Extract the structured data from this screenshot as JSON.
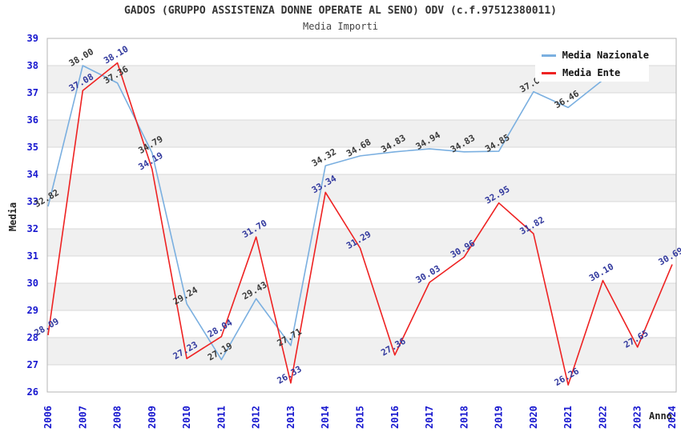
{
  "title": "GADOS (GRUPPO ASSISTENZA DONNE OPERATE AL SENO) ODV (c.f.97512380011)",
  "subtitle": "Media Importi",
  "axes": {
    "y_label": "Media",
    "x_label": "Anno",
    "y_min": 26,
    "y_max": 39,
    "y_ticks": [
      26,
      27,
      28,
      29,
      30,
      31,
      32,
      33,
      34,
      35,
      36,
      37,
      38,
      39
    ]
  },
  "legend": {
    "items": [
      {
        "label": "Media Nazionale",
        "color": "#7aafe0"
      },
      {
        "label": "Media Ente",
        "color": "#ee2222"
      }
    ]
  },
  "colors": {
    "tick_label": "#1717cf",
    "gridline": "#d9d9d9",
    "band_gray": "#f0f0f0",
    "plot_border": "#b5b5b5",
    "nazionale_line": "#7aafe0",
    "nazionale_label": "#3a3a3a",
    "ente_line": "#ee2222",
    "ente_label": "#333a9e"
  },
  "chart_data": {
    "type": "line",
    "title": "GADOS (GRUPPO ASSISTENZA DONNE OPERATE AL SENO) ODV (c.f.97512380011)",
    "subtitle": "Media Importi",
    "xlabel": "Anno",
    "ylabel": "Media",
    "ylim": [
      26,
      39
    ],
    "grid": true,
    "legend_position": "top-right",
    "x": [
      2006,
      2007,
      2008,
      2009,
      2010,
      2011,
      2012,
      2013,
      2014,
      2015,
      2016,
      2017,
      2018,
      2019,
      2020,
      2021,
      2022,
      2023,
      2024
    ],
    "series": [
      {
        "name": "Media Nazionale",
        "color": "#7aafe0",
        "label_color": "#3a3a3a",
        "values": [
          32.82,
          38.0,
          37.36,
          34.79,
          29.24,
          27.19,
          29.43,
          27.71,
          34.32,
          34.68,
          34.83,
          34.94,
          34.83,
          34.85,
          37.04,
          36.46,
          37.47,
          null,
          null
        ],
        "labels": [
          "32.82",
          "38.00",
          "37.36",
          "34.79",
          "29.24",
          "27.19",
          "29.43",
          "27.71",
          "34.32",
          "34.68",
          "34.83",
          "34.94",
          "34.83",
          "34.85",
          "37.04",
          "36.46",
          "",
          null,
          null
        ]
      },
      {
        "name": "Media Ente",
        "color": "#ee2222",
        "label_color": "#333a9e",
        "values": [
          28.09,
          37.08,
          38.1,
          34.19,
          27.23,
          28.04,
          31.7,
          26.33,
          33.34,
          31.29,
          27.36,
          30.03,
          30.96,
          32.95,
          31.82,
          26.26,
          30.1,
          27.65,
          30.69
        ],
        "labels": [
          "28.09",
          "37.08",
          "38.10",
          "34.19",
          "27.23",
          "28.04",
          "31.70",
          "26.33",
          "33.34",
          "31.29",
          "27.36",
          "30.03",
          "30.96",
          "32.95",
          "31.82",
          "26.26",
          "30.10",
          "27.65",
          "30.69"
        ]
      }
    ]
  }
}
